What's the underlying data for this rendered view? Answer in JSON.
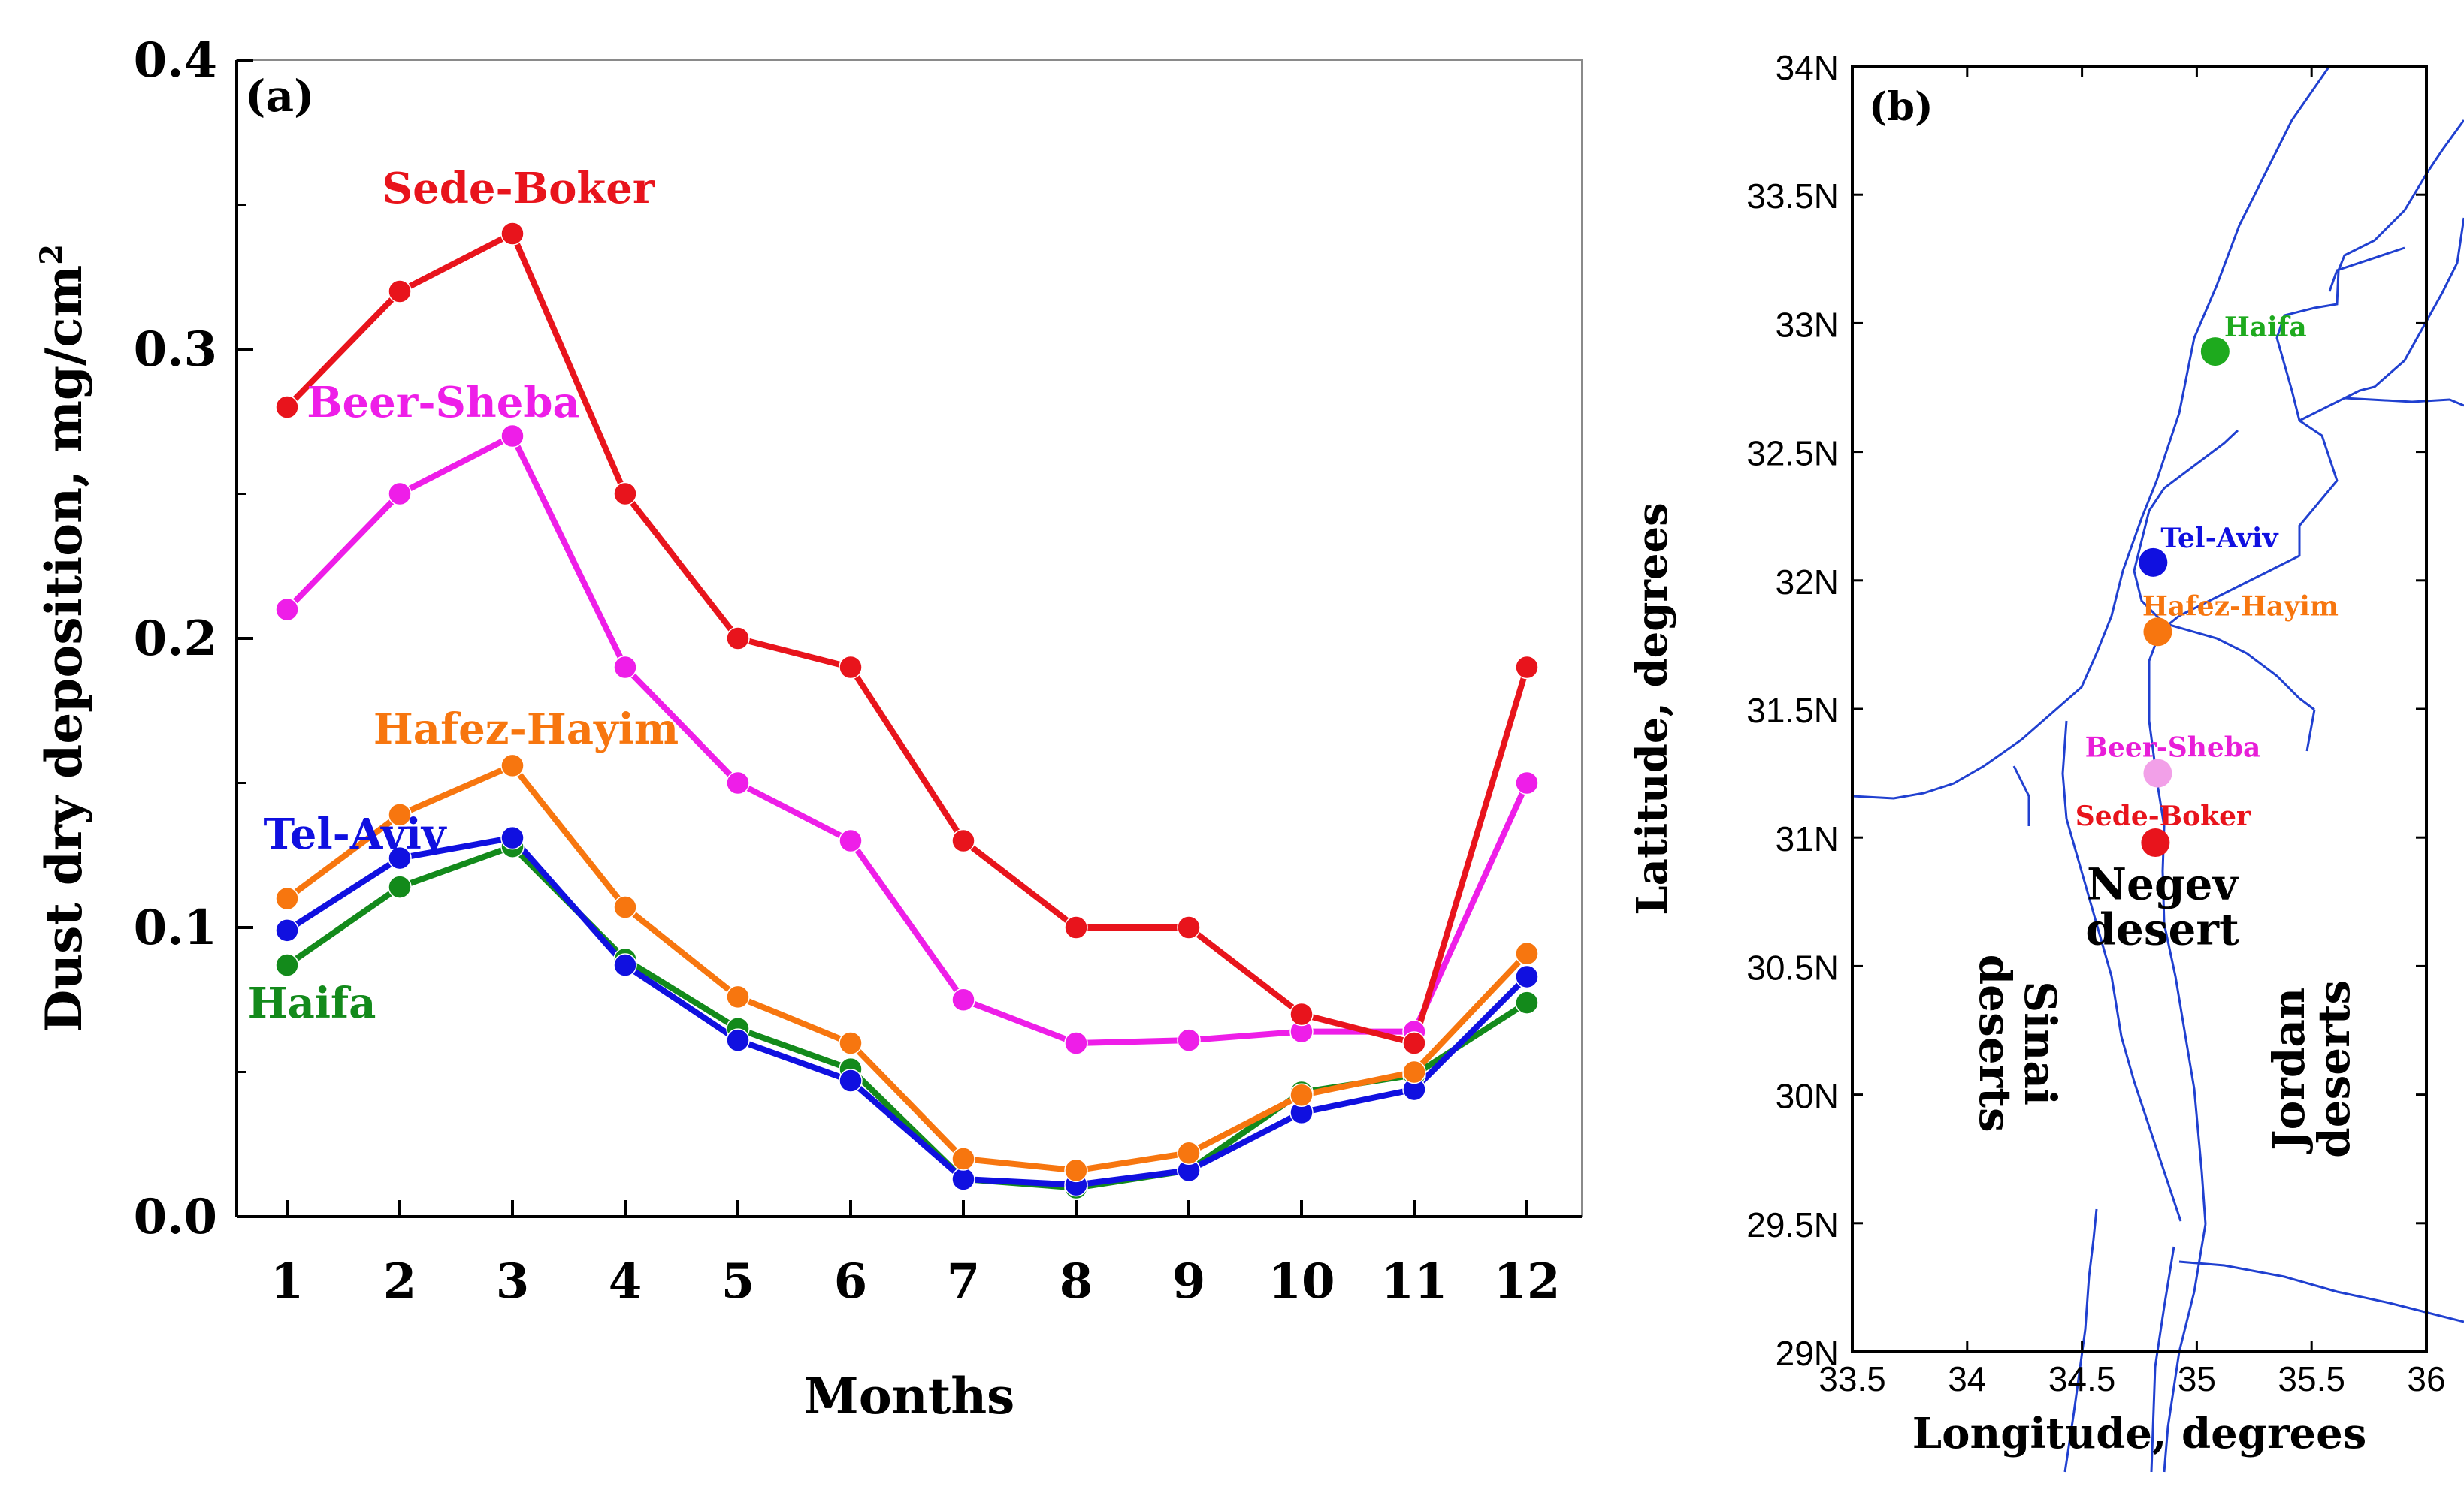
{
  "chart_data": [
    {
      "panel_label": "(a)",
      "type": "line",
      "xlabel": "Months",
      "ylabel": "Dust dry deposition,  mg/cm",
      "ylabel_superscript": "2",
      "categories": [
        1,
        2,
        3,
        4,
        5,
        6,
        7,
        8,
        9,
        10,
        11,
        12
      ],
      "xtick_labels": [
        "1",
        "2",
        "3",
        "4",
        "5",
        "6",
        "7",
        "8",
        "9",
        "10",
        "11",
        "12"
      ],
      "ylim": [
        0,
        0.4
      ],
      "yticks": [
        0,
        0.1,
        0.2,
        0.3,
        0.4
      ],
      "ytick_labels": [
        "0.0",
        "0.1",
        "0.2",
        "0.3",
        "0.4"
      ],
      "grid": false,
      "series": [
        {
          "name": "Sede-Boker",
          "color": "#e8141c",
          "values": [
            0.28,
            0.32,
            0.34,
            0.25,
            0.2,
            0.19,
            0.13,
            0.1,
            0.1,
            0.07,
            0.06,
            0.19
          ]
        },
        {
          "name": "Beer-Sheba",
          "color": "#ee1ee8",
          "values": [
            0.21,
            0.25,
            0.27,
            0.19,
            0.15,
            0.13,
            0.075,
            0.06,
            0.061,
            0.064,
            0.064,
            0.15
          ]
        },
        {
          "name": "Hafez-Hayim",
          "color": "#f7760f",
          "values": [
            0.11,
            0.139,
            0.156,
            0.107,
            0.076,
            0.06,
            0.02,
            0.016,
            0.022,
            0.042,
            0.05,
            0.091
          ]
        },
        {
          "name": "Tel-Aviv",
          "color": "#1010e0",
          "values": [
            0.099,
            0.124,
            0.131,
            0.087,
            0.061,
            0.047,
            0.013,
            0.011,
            0.016,
            0.036,
            0.044,
            0.083
          ]
        },
        {
          "name": "Haifa",
          "color": "#138a1b",
          "values": [
            0.087,
            0.114,
            0.128,
            0.089,
            0.065,
            0.051,
            0.013,
            0.01,
            0.016,
            0.043,
            0.049,
            0.074
          ]
        }
      ]
    },
    {
      "panel_label": "(b)",
      "type": "map",
      "xlabel": "Longitude,  degrees",
      "ylabel": "Latitude,  degrees",
      "xlim": [
        33.5,
        36
      ],
      "ylim": [
        29,
        34
      ],
      "xticks": [
        33.5,
        34,
        34.5,
        35,
        35.5,
        36
      ],
      "xtick_labels": [
        "33.5",
        "34",
        "34.5",
        "35",
        "35.5",
        "36"
      ],
      "yticks": [
        29,
        29.5,
        30,
        30.5,
        31,
        31.5,
        32,
        32.5,
        33,
        33.5,
        34
      ],
      "ytick_labels": [
        "29N",
        "29.5N",
        "30N",
        "30.5N",
        "31N",
        "31.5N",
        "32N",
        "32.5N",
        "33N",
        "33.5N",
        "34N"
      ],
      "border_color": "#2040d0",
      "stations": [
        {
          "name": "Haifa",
          "lon": 35.08,
          "lat": 32.89,
          "color": "#1eaa1e"
        },
        {
          "name": "Tel-Aviv",
          "lon": 34.81,
          "lat": 32.07,
          "color": "#1010e0"
        },
        {
          "name": "Hafez-Hayim",
          "lon": 34.83,
          "lat": 31.8,
          "color": "#f7760f"
        },
        {
          "name": "Beer-Sheba",
          "lon": 34.83,
          "lat": 31.25,
          "color": "#f2a0e8"
        },
        {
          "name": "Sede-Boker",
          "lon": 34.82,
          "lat": 30.98,
          "color": "#e8141c"
        }
      ],
      "region_labels": [
        {
          "text": "Negev desert",
          "lines": [
            "Negev",
            "desert"
          ],
          "lon": 34.85,
          "lat": 30.73,
          "rotation": 0
        },
        {
          "text": "Sinai deserts",
          "lines": [
            "Sinai",
            "deserts"
          ],
          "lon": 34.22,
          "lat": 30.2,
          "rotation": 90
        },
        {
          "text": "Jordan deserts",
          "lines": [
            "Jordan",
            "deserts"
          ],
          "lon": 35.5,
          "lat": 30.1,
          "rotation": -90
        }
      ]
    }
  ]
}
